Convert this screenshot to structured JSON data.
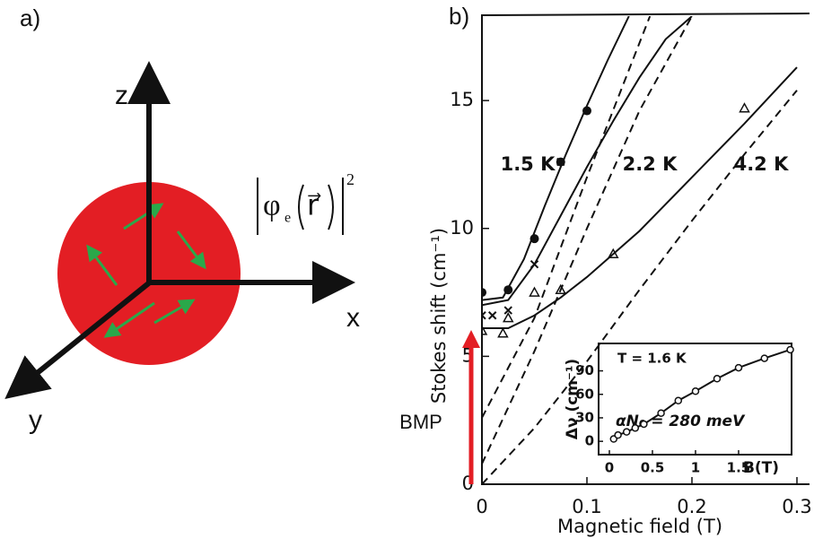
{
  "diagram": {
    "label": "a)",
    "axis_labels": {
      "z": "z",
      "x": "x",
      "y": "y"
    },
    "formula": {
      "symbol": "φ",
      "subscript": "e",
      "argument": "r⃗",
      "power": "2"
    }
  },
  "chart_data": [
    {
      "type": "line",
      "label": "b)",
      "x_label": "Magnetic field (T)",
      "y_label": "Stokes shift (cm⁻¹)",
      "xlim": [
        0,
        0.3
      ],
      "ylim": [
        0,
        18.3
      ],
      "xticks": [
        0,
        0.1,
        0.2,
        0.3
      ],
      "yticks": [
        0,
        5,
        10,
        15
      ],
      "annotations": [
        "1.5 K",
        "2.2 K",
        "4.2 K"
      ],
      "bmp_label": "BMP",
      "bmp_color": "#e31e24",
      "series": [
        {
          "color": "#111111",
          "marker": "dot",
          "line": "none",
          "x": [
            0,
            0.025,
            0.05,
            0.075,
            0.1
          ],
          "values": [
            7.5,
            7.6,
            9.6,
            12.6,
            14.6
          ]
        },
        {
          "color": "#111111",
          "marker": "cross",
          "line": "none",
          "x": [
            0,
            0.01,
            0.025,
            0.05,
            0.075
          ],
          "values": [
            6.6,
            6.6,
            6.8,
            8.6,
            12.6
          ]
        },
        {
          "color": "#111111",
          "marker": "triangle",
          "line": "none",
          "x": [
            0,
            0.02,
            0.025,
            0.05,
            0.075,
            0.125,
            0.25
          ],
          "values": [
            6.0,
            5.9,
            6.5,
            7.5,
            7.6,
            9.0,
            14.7
          ]
        },
        {
          "color": "#111111",
          "marker": "none",
          "line": "solid",
          "x": [
            0,
            0.02,
            0.04,
            0.06,
            0.08,
            0.1,
            0.12,
            0.14
          ],
          "values": [
            7.2,
            7.3,
            8.8,
            10.9,
            12.9,
            14.8,
            16.6,
            18.3
          ]
        },
        {
          "color": "#111111",
          "marker": "none",
          "line": "solid",
          "x": [
            0,
            0.025,
            0.05,
            0.075,
            0.1,
            0.125,
            0.15,
            0.175,
            0.2
          ],
          "values": [
            7.0,
            7.2,
            8.6,
            10.5,
            12.4,
            14.2,
            15.9,
            17.4,
            18.3
          ]
        },
        {
          "color": "#111111",
          "marker": "none",
          "line": "solid",
          "x": [
            0,
            0.025,
            0.05,
            0.075,
            0.1,
            0.15,
            0.2,
            0.25,
            0.3
          ],
          "values": [
            6.1,
            6.1,
            6.6,
            7.3,
            8.1,
            9.9,
            12.0,
            14.1,
            16.3
          ]
        },
        {
          "color": "#111111",
          "marker": "none",
          "line": "dashed",
          "x": [
            0,
            0.05,
            0.1,
            0.16
          ],
          "values": [
            2.6,
            6.5,
            12.0,
            18.3
          ]
        },
        {
          "color": "#111111",
          "marker": "none",
          "line": "dashed",
          "x": [
            0,
            0.05,
            0.1,
            0.15,
            0.2
          ],
          "values": [
            0.8,
            5.2,
            10.0,
            14.6,
            18.3
          ]
        },
        {
          "color": "#111111",
          "marker": "none",
          "line": "dashed",
          "x": [
            0,
            0.05,
            0.1,
            0.15,
            0.2,
            0.25,
            0.3
          ],
          "values": [
            0,
            2.2,
            4.8,
            7.6,
            10.3,
            12.9,
            15.4
          ]
        }
      ]
    },
    {
      "type": "line",
      "x_label": "B(T)",
      "y_label": "Δν (cm⁻¹)",
      "xlim": [
        -0.125,
        2.115
      ],
      "ylim": [
        -17,
        125
      ],
      "xticks": [
        0,
        0.5,
        1,
        1.5
      ],
      "yticks": [
        0,
        30,
        60,
        90
      ],
      "annotations": [
        "T = 1.6 K",
        "αN₀ = 280 meV"
      ],
      "series": [
        {
          "color": "#111111",
          "marker": "circle",
          "line": "solid",
          "x": [
            0.05,
            0.1,
            0.2,
            0.3,
            0.4,
            0.6,
            0.8,
            1.0,
            1.25,
            1.5,
            1.8,
            2.1
          ],
          "values": [
            3,
            8,
            12,
            17,
            22,
            36,
            52,
            64,
            80,
            94,
            106,
            117
          ]
        }
      ]
    }
  ]
}
